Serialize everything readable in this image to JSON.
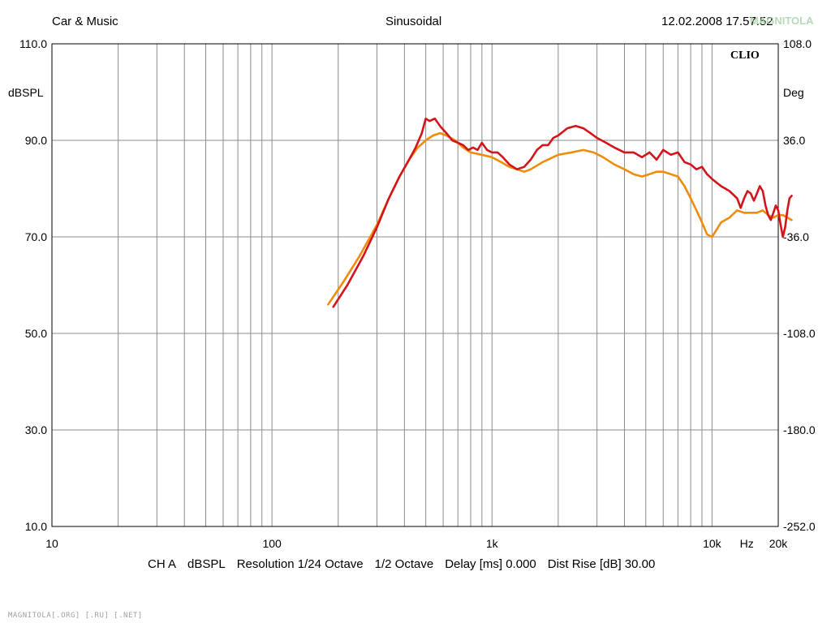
{
  "header": {
    "left": "Car & Music",
    "center": "Sinusoidal",
    "right": "12.02.2008 17.57.52",
    "brand": "CLIO"
  },
  "watermark": "MAGNITOLA[.ORG] [.RU] [.NET]",
  "footer": {
    "items": [
      "CH A",
      "dBSPL",
      "Resolution 1/24 Octave",
      "1/2 Octave",
      "Delay [ms] 0.000",
      "Dist Rise [dB] 30.00"
    ]
  },
  "colors": {
    "grid": "#8c8c8c",
    "series_red": "#d4141a",
    "series_orange": "#f08c0a",
    "background": "#ffffff"
  },
  "chart_data": {
    "type": "line",
    "title": "Sinusoidal",
    "xlabel": "Hz",
    "ylabel": "dBSPL",
    "y2label": "Deg",
    "xscale": "log",
    "xlim": [
      10,
      20000
    ],
    "ylim": [
      10,
      110
    ],
    "y2lim": [
      -252,
      108
    ],
    "grid": true,
    "x_ticks": [
      {
        "value": 10,
        "label": "10"
      },
      {
        "value": 100,
        "label": "100"
      },
      {
        "value": 1000,
        "label": "1k"
      },
      {
        "value": 10000,
        "label": "10k"
      },
      {
        "value": 20000,
        "label": "20k"
      }
    ],
    "x_unit_label": "Hz",
    "y_ticks": [
      {
        "value": 10,
        "label": "10.0"
      },
      {
        "value": 30,
        "label": "30.0"
      },
      {
        "value": 50,
        "label": "50.0"
      },
      {
        "value": 70,
        "label": "70.0"
      },
      {
        "value": 90,
        "label": "90.0"
      },
      {
        "value": 110,
        "label": "110.0"
      }
    ],
    "y2_ticks": [
      {
        "value": -252,
        "label": "-252.0"
      },
      {
        "value": -180,
        "label": "-180.0"
      },
      {
        "value": -108,
        "label": "-108.0"
      },
      {
        "value": -36,
        "label": "-36.0"
      },
      {
        "value": 36,
        "label": "36.0"
      },
      {
        "value": 108,
        "label": "108.0"
      }
    ],
    "series": [
      {
        "color": "#d4141a",
        "points": [
          [
            190,
            55.5
          ],
          [
            220,
            60
          ],
          [
            260,
            66
          ],
          [
            300,
            72
          ],
          [
            340,
            78
          ],
          [
            380,
            82.5
          ],
          [
            420,
            86
          ],
          [
            450,
            88.5
          ],
          [
            480,
            91.5
          ],
          [
            500,
            94.5
          ],
          [
            520,
            94
          ],
          [
            550,
            94.5
          ],
          [
            580,
            93
          ],
          [
            620,
            91.5
          ],
          [
            660,
            90
          ],
          [
            700,
            89.5
          ],
          [
            740,
            89
          ],
          [
            780,
            88
          ],
          [
            820,
            88.5
          ],
          [
            860,
            88
          ],
          [
            900,
            89.5
          ],
          [
            950,
            88
          ],
          [
            1000,
            87.5
          ],
          [
            1060,
            87.5
          ],
          [
            1120,
            86.5
          ],
          [
            1200,
            85
          ],
          [
            1300,
            84
          ],
          [
            1400,
            84.5
          ],
          [
            1500,
            86
          ],
          [
            1600,
            88
          ],
          [
            1700,
            89
          ],
          [
            1800,
            89
          ],
          [
            1900,
            90.5
          ],
          [
            2000,
            91
          ],
          [
            2200,
            92.5
          ],
          [
            2400,
            93
          ],
          [
            2600,
            92.5
          ],
          [
            2800,
            91.5
          ],
          [
            3000,
            90.5
          ],
          [
            3300,
            89.5
          ],
          [
            3600,
            88.5
          ],
          [
            4000,
            87.5
          ],
          [
            4400,
            87.5
          ],
          [
            4800,
            86.5
          ],
          [
            5200,
            87.5
          ],
          [
            5600,
            86
          ],
          [
            6000,
            88
          ],
          [
            6500,
            87
          ],
          [
            7000,
            87.5
          ],
          [
            7500,
            85.5
          ],
          [
            8000,
            85
          ],
          [
            8500,
            84
          ],
          [
            9000,
            84.5
          ],
          [
            9500,
            83
          ],
          [
            10000,
            82
          ],
          [
            11000,
            80.5
          ],
          [
            12000,
            79.5
          ],
          [
            13000,
            78
          ],
          [
            13500,
            76
          ],
          [
            14000,
            78
          ],
          [
            14500,
            79.5
          ],
          [
            15000,
            79
          ],
          [
            15500,
            77.5
          ],
          [
            16000,
            79
          ],
          [
            16500,
            80.5
          ],
          [
            17000,
            79.5
          ],
          [
            17500,
            76.5
          ],
          [
            18000,
            74.5
          ],
          [
            18500,
            73.5
          ],
          [
            19000,
            75
          ],
          [
            19500,
            76.5
          ],
          [
            20000,
            75.5
          ],
          [
            20500,
            72.5
          ],
          [
            21000,
            70
          ],
          [
            21500,
            72
          ],
          [
            22000,
            75.5
          ],
          [
            22500,
            78
          ],
          [
            23000,
            78.5
          ]
        ]
      },
      {
        "color": "#f08c0a",
        "points": [
          [
            180,
            56
          ],
          [
            210,
            60.5
          ],
          [
            250,
            66
          ],
          [
            300,
            72.5
          ],
          [
            340,
            78
          ],
          [
            380,
            82.5
          ],
          [
            420,
            86
          ],
          [
            460,
            88.5
          ],
          [
            500,
            90
          ],
          [
            540,
            91
          ],
          [
            580,
            91.5
          ],
          [
            620,
            91
          ],
          [
            680,
            90
          ],
          [
            740,
            88.5
          ],
          [
            800,
            87.5
          ],
          [
            900,
            87
          ],
          [
            1000,
            86.5
          ],
          [
            1100,
            85.5
          ],
          [
            1200,
            84.5
          ],
          [
            1300,
            84
          ],
          [
            1400,
            83.5
          ],
          [
            1500,
            84
          ],
          [
            1700,
            85.5
          ],
          [
            2000,
            87
          ],
          [
            2300,
            87.5
          ],
          [
            2600,
            88
          ],
          [
            2900,
            87.5
          ],
          [
            3200,
            86.5
          ],
          [
            3600,
            85
          ],
          [
            4000,
            84
          ],
          [
            4400,
            83
          ],
          [
            4800,
            82.5
          ],
          [
            5200,
            83
          ],
          [
            5600,
            83.5
          ],
          [
            6000,
            83.5
          ],
          [
            6500,
            83
          ],
          [
            7000,
            82.5
          ],
          [
            7500,
            80.5
          ],
          [
            8000,
            78
          ],
          [
            8500,
            75.5
          ],
          [
            9000,
            73
          ],
          [
            9500,
            70.5
          ],
          [
            10000,
            70
          ],
          [
            10500,
            71.5
          ],
          [
            11000,
            73
          ],
          [
            12000,
            74
          ],
          [
            13000,
            75.5
          ],
          [
            14000,
            75
          ],
          [
            15000,
            75
          ],
          [
            16000,
            75
          ],
          [
            17000,
            75.5
          ],
          [
            18000,
            74.5
          ],
          [
            19000,
            74
          ],
          [
            20000,
            74.5
          ],
          [
            21000,
            74.5
          ],
          [
            22000,
            74
          ],
          [
            23000,
            73.5
          ]
        ]
      }
    ]
  }
}
